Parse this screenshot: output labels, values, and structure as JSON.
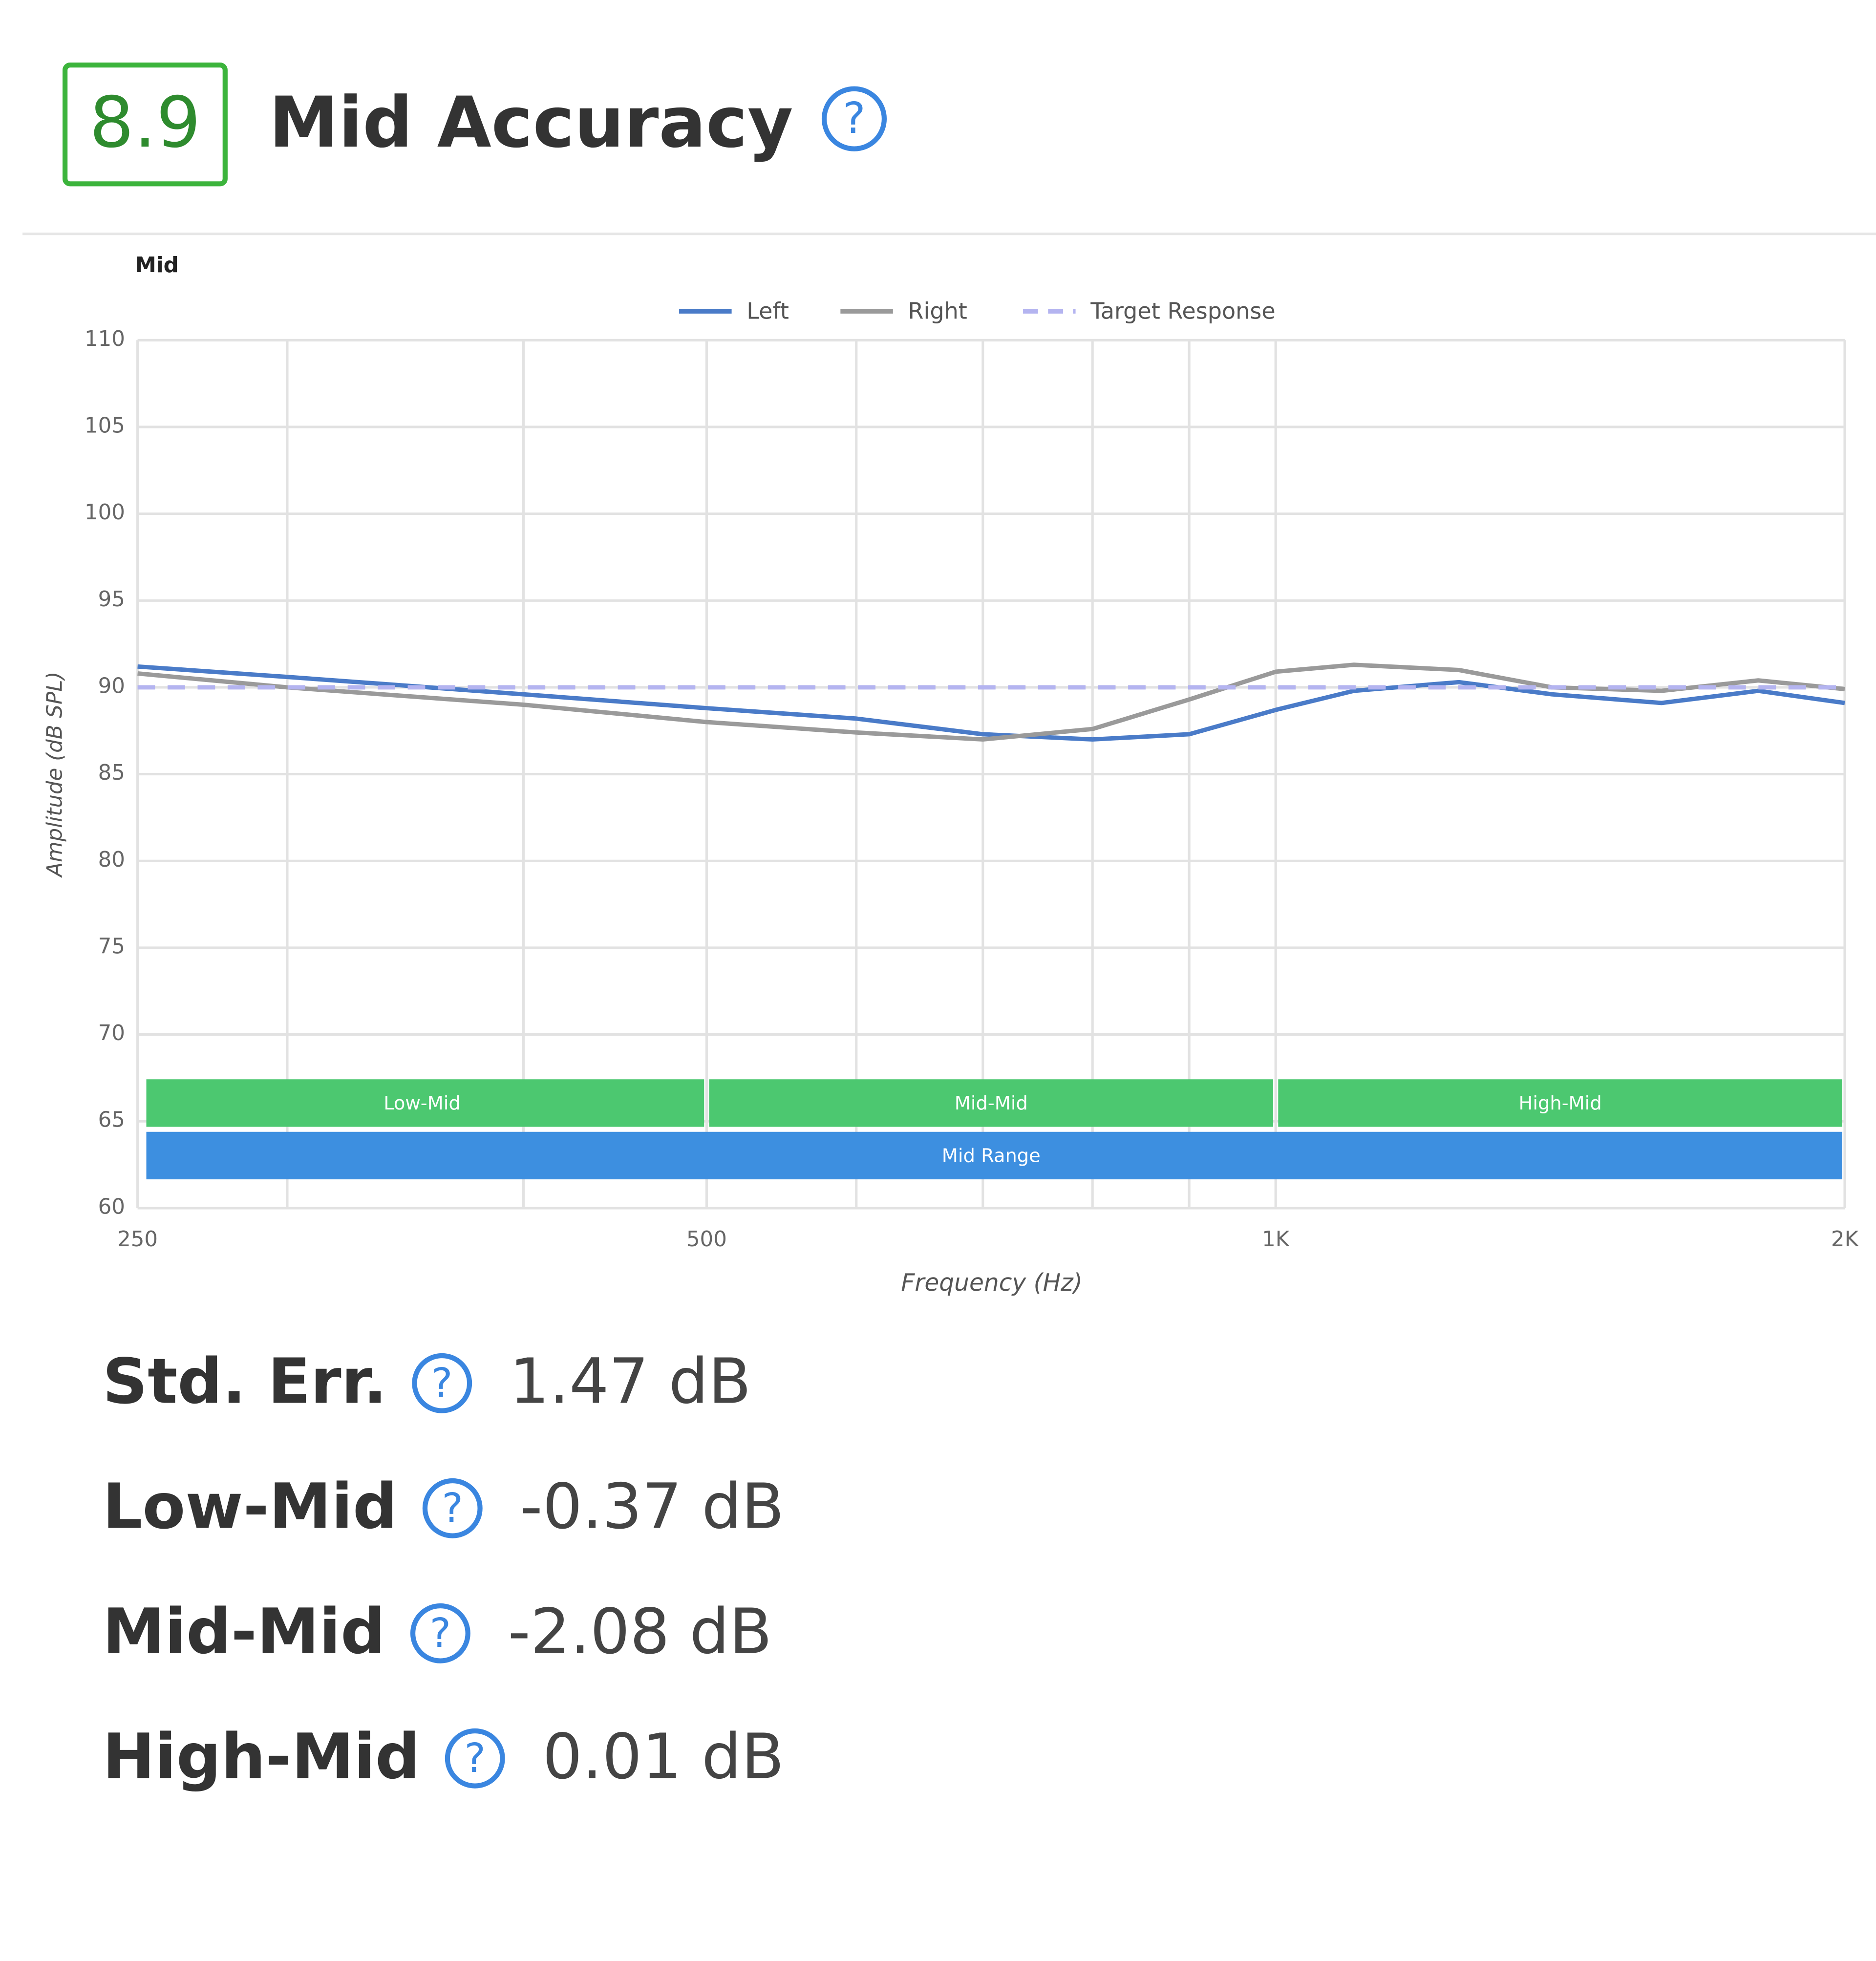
{
  "header": {
    "score": "8.9",
    "title": "Mid Accuracy"
  },
  "chart_data": {
    "type": "line",
    "title": "Mid",
    "x_label": "Frequency (Hz)",
    "y_label": "Amplitude (dB SPL)",
    "xscale": "log",
    "grid": true,
    "legend": "top",
    "xlim": [
      250,
      2000
    ],
    "ylim": [
      60,
      110
    ],
    "xticks": [
      250,
      500,
      {
        "value": 1000,
        "label": "1K"
      },
      {
        "value": 2000,
        "label": "2K"
      }
    ],
    "xminor": [
      300,
      400,
      600,
      700,
      800,
      900
    ],
    "yticks": [
      60,
      65,
      70,
      75,
      80,
      85,
      90,
      95,
      100,
      105,
      110
    ],
    "series": [
      {
        "name": "Left",
        "color": "#4a7bc8",
        "dash": false,
        "x": [
          250,
          300,
          400,
          500,
          600,
          700,
          800,
          900,
          1000,
          1100,
          1250,
          1400,
          1600,
          1800,
          2000
        ],
        "values": [
          91.2,
          90.6,
          89.6,
          88.8,
          88.2,
          87.3,
          87.0,
          87.3,
          88.7,
          89.8,
          90.3,
          89.6,
          89.1,
          89.8,
          89.1
        ]
      },
      {
        "name": "Right",
        "color": "#9a9a9a",
        "dash": false,
        "x": [
          250,
          300,
          400,
          500,
          600,
          700,
          800,
          900,
          1000,
          1100,
          1250,
          1400,
          1600,
          1800,
          2000
        ],
        "values": [
          90.8,
          90.0,
          89.0,
          88.0,
          87.4,
          87.0,
          87.6,
          89.3,
          90.9,
          91.3,
          91.0,
          90.0,
          89.8,
          90.4,
          89.9
        ]
      },
      {
        "name": "Target Response",
        "color": "#b4b4f0",
        "dash": true,
        "x": [
          250,
          2000
        ],
        "values": [
          90,
          90
        ]
      }
    ],
    "bands": [
      {
        "label": "Low-Mid",
        "from": 250,
        "to": 500,
        "color": "#4cc870",
        "row": 0
      },
      {
        "label": "Mid-Mid",
        "from": 500,
        "to": 1000,
        "color": "#4cc870",
        "row": 0
      },
      {
        "label": "High-Mid",
        "from": 1000,
        "to": 2000,
        "color": "#4cc870",
        "row": 0
      },
      {
        "label": "Mid Range",
        "from": 250,
        "to": 2000,
        "color": "#3d8fe0",
        "row": 1
      }
    ]
  },
  "metrics": [
    {
      "label": "Std. Err.",
      "value": "1.47 dB"
    },
    {
      "label": "Low-Mid",
      "value": "-0.37 dB"
    },
    {
      "label": "Mid-Mid",
      "value": "-2.08 dB"
    },
    {
      "label": "High-Mid",
      "value": "0.01 dB"
    }
  ]
}
